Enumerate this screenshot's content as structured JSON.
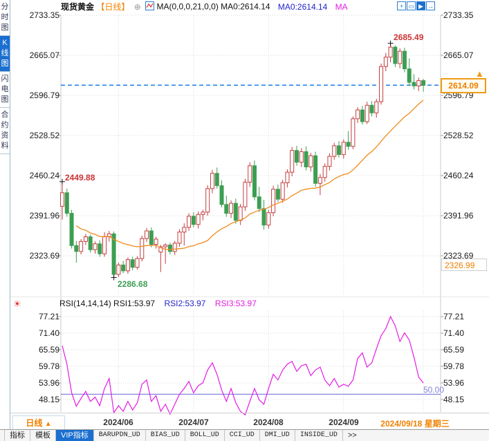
{
  "header": {
    "symbol": "现货黄金",
    "period": "【日线】",
    "plus_icon": "⊕",
    "ma_black": "MA(0,0,0,21,0,0) MA0:2614.14",
    "ma_blue": "MA0:2614.14",
    "ma_magenta": "MA"
  },
  "toolbar": {
    "icons": [
      {
        "name": "crosshair-icon",
        "glyph": "+"
      },
      {
        "name": "zoom-range-icon",
        "glyph": "▭"
      },
      {
        "name": "zoom-in-icon",
        "glyph": "▶"
      },
      {
        "name": "step-forward-icon",
        "glyph": "→"
      }
    ]
  },
  "sidebar": {
    "items": [
      {
        "label": "分时图",
        "active": false
      },
      {
        "label": "K线图",
        "active": true
      },
      {
        "label": "闪电图",
        "active": false
      },
      {
        "label": "合约资料",
        "active": false
      }
    ]
  },
  "rsi_header": {
    "icon": "☀",
    "black": "RSI(14,14,14) RSI1:53.97",
    "blue": "RSI2:53.97",
    "magenta": "RSI3:53.97"
  },
  "xaxis": {
    "period_button": "日线",
    "period_arrow": "▲"
  },
  "tabs": [
    "指标",
    "模板",
    "VIP指标",
    "BARUPDN_UD",
    "BIAS_UD",
    "BOLL_UD",
    "CCI_UD",
    "DMI_UD",
    "INSIDE_UD",
    ">>"
  ],
  "colors": {
    "up": "#c43c3c",
    "down": "#3d9e52",
    "ma": "#f08a1c",
    "rsi": "#e41ce4",
    "rsi_mid": "#8282dc",
    "price_line": "#1e7de8",
    "grid": "#d9d9d9",
    "axis": "#c8c8c8",
    "tick": "#999999",
    "accent_orange": "#f08000",
    "accent_blue": "#1a6fd0"
  },
  "chart_data": {
    "type": "candlestick",
    "title": "现货黄金 【日线】",
    "legend": [
      "MA(21)",
      "RSI1",
      "RSI2",
      "RSI3"
    ],
    "y_ticks_main": [
      "2733.35",
      "2665.07",
      "2596.79",
      "2528.52",
      "2460.24",
      "2391.96",
      "2323.69"
    ],
    "current_price": "2614.09",
    "session_low_box": "2326.99",
    "ma_period": 21,
    "ma_last": "2614.14",
    "candles_ohlc": [
      [
        2408,
        2449.88,
        2385,
        2431
      ],
      [
        2431,
        2438,
        2390,
        2396
      ],
      [
        2396,
        2402,
        2336,
        2341
      ],
      [
        2341,
        2349,
        2312,
        2331
      ],
      [
        2331,
        2352,
        2326,
        2348
      ],
      [
        2348,
        2361,
        2342,
        2356
      ],
      [
        2356,
        2360,
        2329,
        2334
      ],
      [
        2334,
        2348,
        2327,
        2344
      ],
      [
        2344,
        2350,
        2322,
        2327
      ],
      [
        2327,
        2364,
        2322,
        2356
      ],
      [
        2356,
        2366,
        2348,
        2361
      ],
      [
        2361,
        2365,
        2286.68,
        2292
      ],
      [
        2292,
        2312,
        2287,
        2308
      ],
      [
        2308,
        2315,
        2294,
        2298
      ],
      [
        2298,
        2321,
        2293,
        2317
      ],
      [
        2317,
        2322,
        2299,
        2304
      ],
      [
        2304,
        2323,
        2300,
        2319
      ],
      [
        2319,
        2358,
        2314,
        2353
      ],
      [
        2353,
        2371,
        2347,
        2366
      ],
      [
        2366,
        2372,
        2338,
        2343
      ],
      [
        2343,
        2356,
        2336,
        2352
      ],
      [
        2330,
        2342,
        2296,
        2339
      ],
      [
        2339,
        2345,
        2310,
        2342
      ],
      [
        2342,
        2346,
        2326,
        2331
      ],
      [
        2331,
        2349,
        2325,
        2345
      ],
      [
        2345,
        2369,
        2339,
        2364
      ],
      [
        2364,
        2379,
        2341,
        2372
      ],
      [
        2372,
        2396,
        2366,
        2391
      ],
      [
        2391,
        2398,
        2372,
        2377
      ],
      [
        2377,
        2399,
        2370,
        2394
      ],
      [
        2394,
        2402,
        2384,
        2398
      ],
      [
        2398,
        2444,
        2392,
        2438
      ],
      [
        2438,
        2470,
        2430,
        2464
      ],
      [
        2464,
        2474,
        2438,
        2443
      ],
      [
        2443,
        2452,
        2406,
        2411
      ],
      [
        2411,
        2426,
        2390,
        2396
      ],
      [
        2396,
        2418,
        2388,
        2413
      ],
      [
        2413,
        2421,
        2378,
        2384
      ],
      [
        2384,
        2412,
        2376,
        2407
      ],
      [
        2407,
        2455,
        2400,
        2449
      ],
      [
        2449,
        2483,
        2441,
        2477
      ],
      [
        2477,
        2486,
        2418,
        2424
      ],
      [
        2424,
        2441,
        2398,
        2404
      ],
      [
        2404,
        2419,
        2368,
        2376
      ],
      [
        2376,
        2402,
        2370,
        2397
      ],
      [
        2397,
        2443,
        2391,
        2437
      ],
      [
        2437,
        2445,
        2415,
        2420
      ],
      [
        2420,
        2453,
        2414,
        2448
      ],
      [
        2448,
        2471,
        2440,
        2466
      ],
      [
        2466,
        2509,
        2459,
        2503
      ],
      [
        2503,
        2511,
        2477,
        2483
      ],
      [
        2483,
        2507,
        2475,
        2501
      ],
      [
        2501,
        2510,
        2469,
        2475
      ],
      [
        2475,
        2499,
        2467,
        2494
      ],
      [
        2494,
        2501,
        2441,
        2447
      ],
      [
        2447,
        2463,
        2427,
        2457
      ],
      [
        2457,
        2481,
        2450,
        2476
      ],
      [
        2476,
        2498,
        2469,
        2493
      ],
      [
        2493,
        2516,
        2487,
        2511
      ],
      [
        2511,
        2519,
        2491,
        2496
      ],
      [
        2496,
        2522,
        2489,
        2517
      ],
      [
        2517,
        2536,
        2504,
        2510
      ],
      [
        2510,
        2561,
        2505,
        2557
      ],
      [
        2557,
        2577,
        2550,
        2572
      ],
      [
        2572,
        2579,
        2547,
        2552
      ],
      [
        2552,
        2586,
        2548,
        2580
      ],
      [
        2580,
        2587,
        2561,
        2567
      ],
      [
        2567,
        2591,
        2559,
        2586
      ],
      [
        2586,
        2651,
        2581,
        2646
      ],
      [
        2646,
        2669,
        2638,
        2662
      ],
      [
        2662,
        2685.49,
        2653,
        2679
      ],
      [
        2679,
        2682,
        2645,
        2651
      ],
      [
        2651,
        2677,
        2643,
        2672
      ],
      [
        2672,
        2678,
        2636,
        2642
      ],
      [
        2642,
        2660,
        2613,
        2619
      ],
      [
        2619,
        2633,
        2607,
        2613
      ],
      [
        2613,
        2627,
        2604,
        2622
      ],
      [
        2622,
        2625,
        2603,
        2614.09
      ]
    ],
    "annotations": [
      {
        "type": "high",
        "index": 0,
        "value": "2449.88"
      },
      {
        "type": "low",
        "index": 11,
        "value": "2286.68"
      },
      {
        "type": "high",
        "index": 70,
        "value": "2685.49"
      }
    ],
    "months": [
      {
        "label": "2024/06",
        "index": 12
      },
      {
        "label": "2024/07",
        "index": 28
      },
      {
        "label": "2024/08",
        "index": 44
      },
      {
        "label": "2024/09",
        "index": 60
      },
      {
        "label": "2024/09/18 星期三",
        "index": 77
      }
    ],
    "rsi": {
      "params": "14,14,14",
      "y_ticks": [
        "77.21",
        "71.40",
        "65.59",
        "59.78",
        "53.96",
        "48.15"
      ],
      "midline": "50.00",
      "values": [
        67.0,
        60.5,
        50.5,
        45.8,
        48.5,
        51.0,
        47.5,
        49.0,
        46.0,
        52.0,
        55.5,
        43.5,
        46.0,
        44.0,
        47.5,
        44.5,
        47.0,
        53.5,
        55.0,
        47.5,
        49.5,
        44.0,
        46.5,
        43.0,
        46.5,
        50.0,
        52.0,
        54.5,
        50.5,
        53.0,
        54.0,
        58.5,
        61.0,
        57.0,
        51.5,
        47.5,
        52.0,
        47.0,
        44.0,
        42.8,
        47.5,
        52.0,
        48.0,
        46.5,
        52.0,
        57.0,
        55.0,
        58.5,
        60.5,
        61.5,
        58.0,
        60.0,
        60.5,
        56.5,
        58.5,
        59.5,
        55.0,
        53.0,
        55.5,
        52.5,
        53.5,
        52.8,
        55.0,
        62.5,
        64.5,
        59.5,
        61.0,
        66.0,
        70.5,
        73.0,
        77.21,
        74.0,
        68.5,
        71.5,
        69.0,
        63.0,
        56.0,
        53.97
      ]
    }
  }
}
